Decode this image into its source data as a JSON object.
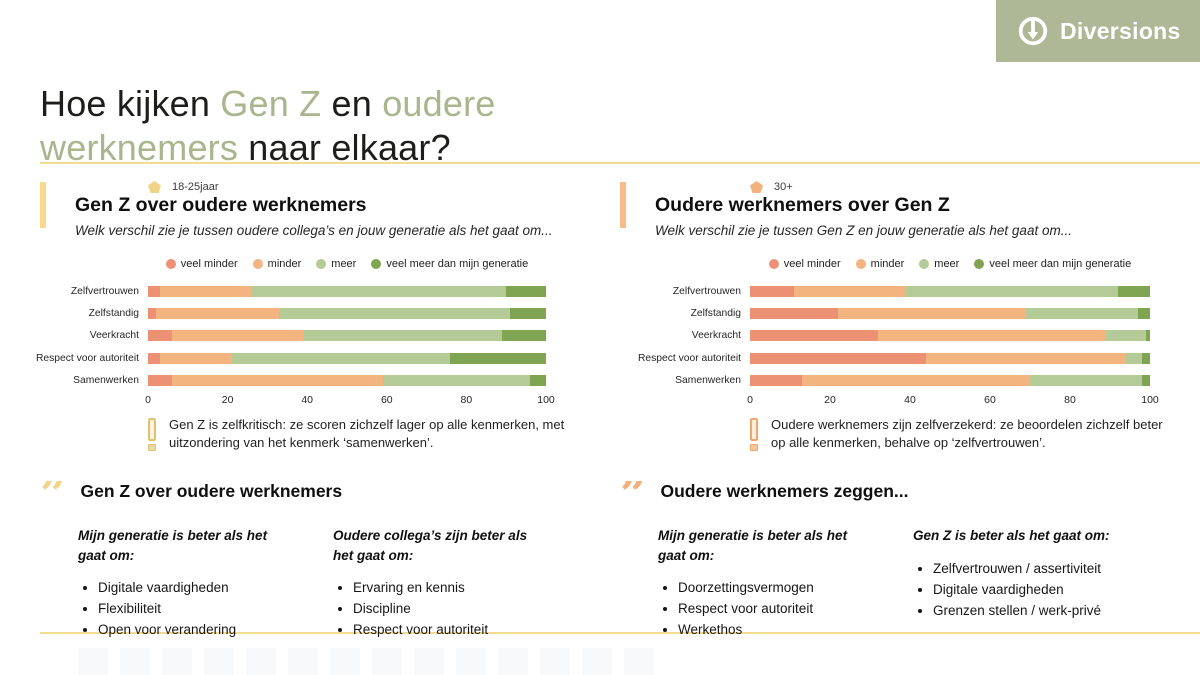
{
  "logo": {
    "text": "Diversions",
    "bg_color": "#aeb897",
    "text_color": "#ffffff"
  },
  "title": {
    "l1a": "Hoe kijken ",
    "l1b": "Gen Z",
    "l1c": " en ",
    "l1d": "oudere",
    "l2a": "werknemers",
    "l2b": " naar elkaar?",
    "accent_color": "#a9b58c"
  },
  "divider_color": "#f2dc92",
  "chart_data": [
    {
      "type": "bar",
      "orientation": "horizontal-stacked",
      "group_label": "18-25jaar",
      "title": "Gen Z over oudere werknemers",
      "subtitle": "Welk verschil zie je tussen oudere collega’s en jouw generatie als het gaat om...",
      "categories": [
        "Zelfvertrouwen",
        "Zelfstandig",
        "Veerkracht",
        "Respect voor autoriteit",
        "Samenwerken"
      ],
      "series": [
        {
          "name": "veel minder",
          "color": "#ed9175",
          "values": [
            3,
            2,
            6,
            3,
            6
          ]
        },
        {
          "name": "minder",
          "color": "#f4b480",
          "values": [
            23,
            31,
            33,
            18,
            53
          ]
        },
        {
          "name": "meer",
          "color": "#b4ca97",
          "values": [
            64,
            58,
            50,
            55,
            37
          ]
        },
        {
          "name": "veel meer dan mijn generatie",
          "color": "#7fa452",
          "values": [
            10,
            9,
            11,
            24,
            4
          ]
        }
      ],
      "xlim": [
        0,
        100
      ],
      "xticks": [
        0,
        20,
        40,
        60,
        80,
        100
      ],
      "grid": false,
      "legend_position": "top-center",
      "note": "Gen Z is zelfkritisch: ze scoren zichzelf lager op alle kenmerken, met uitzondering van het kenmerk ‘samenwerken’.",
      "accent_bar_color": "#f6da8d",
      "marker_color": "#f1d387",
      "note_icon_border": "#dfc176",
      "note_icon_fill": "#faf3dd",
      "note_icon_dot": "#ead9a8"
    },
    {
      "type": "bar",
      "orientation": "horizontal-stacked",
      "group_label": "30+",
      "title": "Oudere werknemers over Gen Z",
      "subtitle": "Welk verschil zie je tussen Gen Z en jouw generatie als het gaat om...",
      "categories": [
        "Zelfvertrouwen",
        "Zelfstandig",
        "Veerkracht",
        "Respect voor autoriteit",
        "Samenwerken"
      ],
      "series": [
        {
          "name": "veel minder",
          "color": "#ed9175",
          "values": [
            11,
            22,
            32,
            44,
            13
          ]
        },
        {
          "name": "minder",
          "color": "#f4b480",
          "values": [
            28,
            47,
            57,
            50,
            57
          ]
        },
        {
          "name": "meer",
          "color": "#b4ca97",
          "values": [
            53,
            28,
            10,
            4,
            28
          ]
        },
        {
          "name": "veel meer dan mijn generatie",
          "color": "#7fa452",
          "values": [
            8,
            3,
            1,
            2,
            2
          ]
        }
      ],
      "xlim": [
        0,
        100
      ],
      "xticks": [
        0,
        20,
        40,
        60,
        80,
        100
      ],
      "grid": false,
      "legend_position": "top-center",
      "note": "Oudere werknemers zijn zelfverzekerd: ze beoordelen zichzelf beter op alle kenmerken, behalve op ‘zelfvertrouwen’.",
      "accent_bar_color": "#f6bd8c",
      "marker_color": "#f2b27c",
      "note_icon_border": "#eda76f",
      "note_icon_fill": "#fdeede",
      "note_icon_dot": "#f5c69c"
    }
  ],
  "quotes": [
    {
      "heading": "Gen Z over oudere werknemers",
      "accent_color": "#f0d58b",
      "columns": [
        {
          "intro": "Mijn generatie is beter als het gaat om:",
          "items": [
            "Digitale vaardigheden",
            "Flexibiliteit",
            "Open voor verandering"
          ]
        },
        {
          "intro": "Oudere collega’s zijn beter als het gaat om:",
          "items": [
            "Ervaring en kennis",
            "Discipline",
            "Respect voor autoriteit"
          ]
        }
      ]
    },
    {
      "heading": "Oudere werknemers zeggen...",
      "accent_color": "#f2b07a",
      "columns": [
        {
          "intro": "Mijn generatie is beter als het gaat om:",
          "items": [
            "Doorzettingsvermogen",
            "Respect voor autoriteit",
            "Werkethos"
          ]
        },
        {
          "intro": "Gen Z is beter als het gaat om:",
          "items": [
            "Zelfvertrouwen / assertiviteit",
            "Digitale vaardigheden",
            "Grenzen stellen / werk-privé"
          ]
        }
      ]
    }
  ]
}
